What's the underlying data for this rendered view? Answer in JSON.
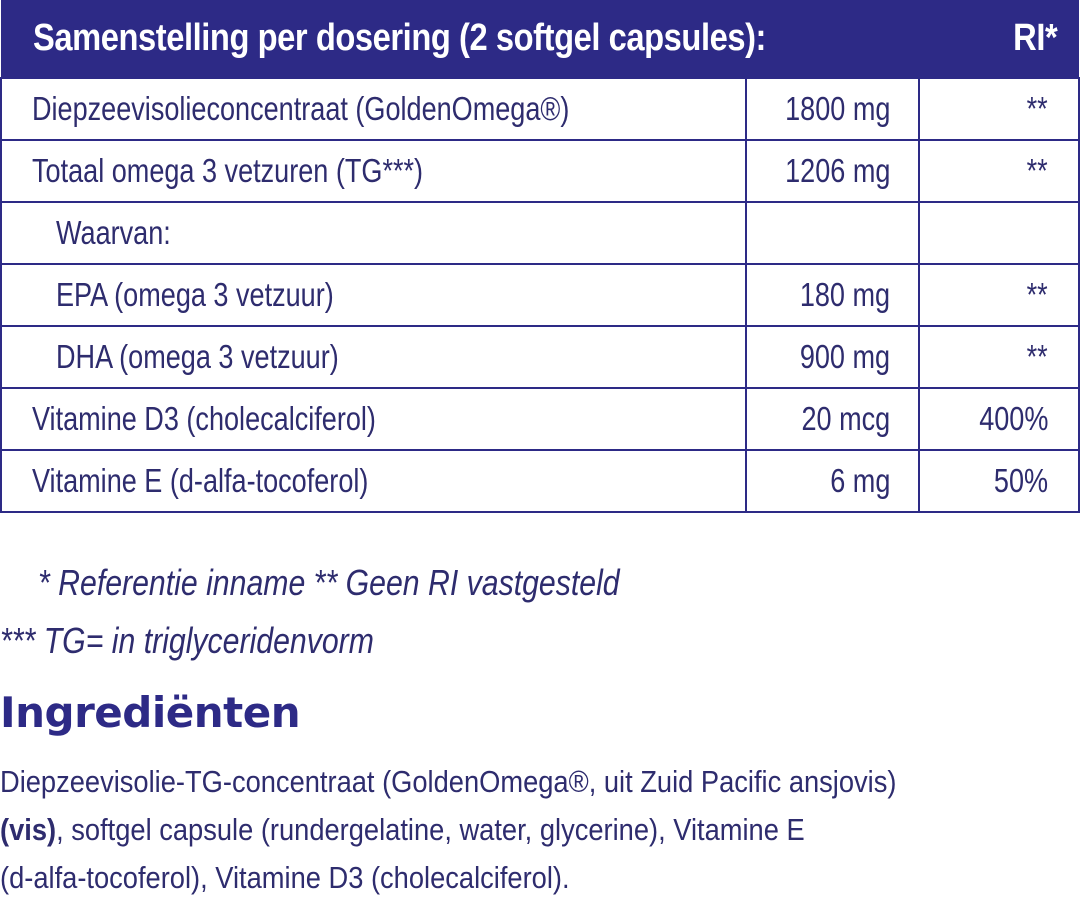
{
  "table": {
    "header": {
      "title": "Samenstelling per dosering (2 softgel capsules):",
      "ri": "RI*"
    },
    "rows": [
      {
        "name": "Diepzeevisolieconcentraat (GoldenOmega®)",
        "amount": "1800 mg",
        "ri": "**",
        "indent": false
      },
      {
        "name": "Totaal omega 3 vetzuren (TG***)",
        "amount": "1206 mg",
        "ri": "**",
        "indent": false
      },
      {
        "name": "Waarvan:",
        "amount": "",
        "ri": "",
        "indent": true
      },
      {
        "name": "EPA (omega 3 vetzuur)",
        "amount": "180 mg",
        "ri": "**",
        "indent": true
      },
      {
        "name": "DHA (omega 3 vetzuur)",
        "amount": "900 mg",
        "ri": "**",
        "indent": true
      },
      {
        "name": "Vitamine D3 (cholecalciferol)",
        "amount": "20 mcg",
        "ri": "400%",
        "indent": false
      },
      {
        "name": "Vitamine E (d-alfa-tocoferol)",
        "amount": "6 mg",
        "ri": "50%",
        "indent": false
      }
    ]
  },
  "footnotes": {
    "line1": "* Referentie inname  ** Geen RI vastgesteld",
    "line2": "*** TG= in triglyceridenvorm"
  },
  "ingredients": {
    "heading": "Ingrediënten",
    "line1": "Diepzeevisolie-TG-concentraat (GoldenOmega®, uit Zuid Pacific ansjovis)",
    "line2_bold": "(vis)",
    "line2_rest": ", softgel capsule (rundergelatine, water, glycerine), Vitamine E",
    "line3": "(d-alfa-tocoferol), Vitamine D3 (cholecalciferol)."
  },
  "colors": {
    "header_bg": "#2d2a86",
    "text": "#2e2c6e",
    "border": "#2d2a86"
  }
}
